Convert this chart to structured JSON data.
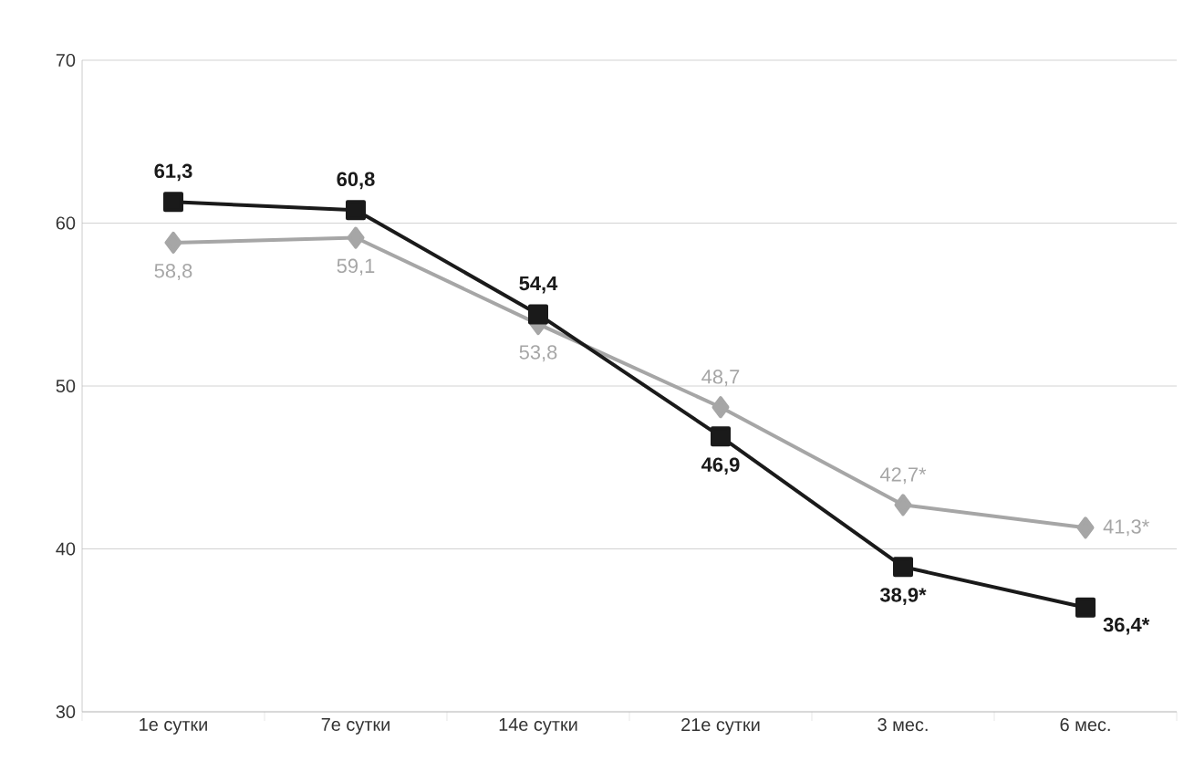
{
  "chart_data": {
    "type": "line",
    "categories": [
      "1е сутки",
      "7е сутки",
      "14е сутки",
      "21е сутки",
      "3 мес.",
      "6 мес."
    ],
    "series": [
      {
        "color": "#a6a6a6",
        "marker": "diamond",
        "values": [
          58.8,
          59.1,
          53.8,
          48.7,
          42.7,
          41.3
        ],
        "value_labels": [
          "58,8",
          "59,1",
          "53,8",
          "48,7",
          "42,7*",
          "41,3*"
        ]
      },
      {
        "color": "#1a1a1a",
        "marker": "square",
        "values": [
          61.3,
          60.8,
          54.4,
          46.9,
          38.9,
          36.4
        ],
        "value_labels": [
          "61,3",
          "60,8",
          "54,4",
          "46,9",
          "38,9*",
          "36,4*"
        ]
      }
    ],
    "ylim": [
      30,
      70
    ],
    "yticks": [
      30,
      40,
      50,
      60,
      70
    ],
    "grid": "y"
  }
}
